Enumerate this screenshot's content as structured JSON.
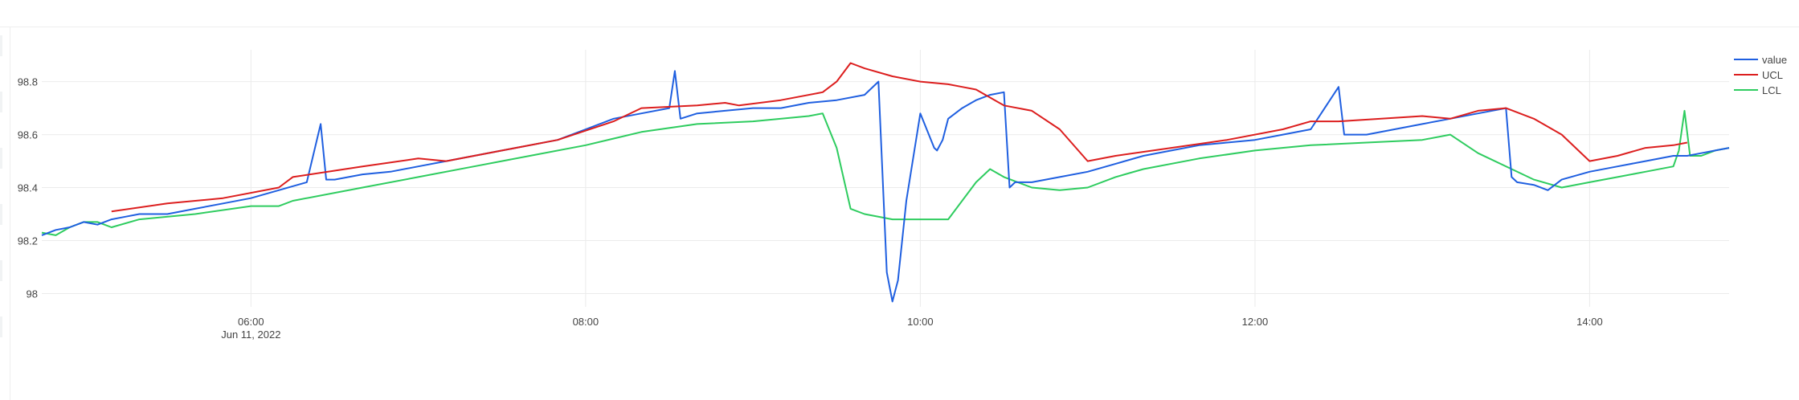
{
  "chart_data": {
    "type": "line",
    "title": "",
    "xlabel": "",
    "ylabel": "",
    "date_label": "Jun 11, 2022",
    "x_range": [
      "04:45",
      "14:50"
    ],
    "x_ticks": [
      "06:00",
      "08:00",
      "10:00",
      "12:00",
      "14:00"
    ],
    "ylim": [
      97.95,
      98.92
    ],
    "y_ticks": [
      "98",
      "98.2",
      "98.4",
      "98.6",
      "98.8"
    ],
    "grid": true,
    "legend_position": "top-right",
    "series": [
      {
        "name": "value",
        "color": "#1f5fe0",
        "x": [
          "04:45",
          "04:50",
          "04:55",
          "05:00",
          "05:05",
          "05:10",
          "05:15",
          "05:20",
          "05:25",
          "05:30",
          "05:40",
          "05:50",
          "06:00",
          "06:10",
          "06:20",
          "06:25",
          "06:27",
          "06:30",
          "06:40",
          "06:50",
          "07:00",
          "07:10",
          "07:20",
          "07:30",
          "07:40",
          "07:50",
          "08:00",
          "08:10",
          "08:20",
          "08:30",
          "08:32",
          "08:34",
          "08:40",
          "08:50",
          "09:00",
          "09:10",
          "09:20",
          "09:30",
          "09:40",
          "09:45",
          "09:48",
          "09:50",
          "09:52",
          "09:55",
          "10:00",
          "10:05",
          "10:06",
          "10:08",
          "10:10",
          "10:15",
          "10:20",
          "10:25",
          "10:30",
          "10:32",
          "10:34",
          "10:40",
          "10:50",
          "11:00",
          "11:10",
          "11:20",
          "11:30",
          "11:40",
          "11:50",
          "12:00",
          "12:10",
          "12:20",
          "12:30",
          "12:32",
          "12:34",
          "12:40",
          "12:50",
          "13:00",
          "13:10",
          "13:20",
          "13:30",
          "13:32",
          "13:34",
          "13:40",
          "13:45",
          "13:50",
          "14:00",
          "14:10",
          "14:20",
          "14:30",
          "14:35",
          "14:40",
          "14:45",
          "14:50"
        ],
        "values": [
          98.22,
          98.24,
          98.25,
          98.27,
          98.26,
          98.28,
          98.29,
          98.3,
          98.3,
          98.3,
          98.32,
          98.34,
          98.36,
          98.39,
          98.42,
          98.64,
          98.43,
          98.43,
          98.45,
          98.46,
          98.48,
          98.5,
          98.52,
          98.54,
          98.56,
          98.58,
          98.62,
          98.66,
          98.68,
          98.7,
          98.84,
          98.66,
          98.68,
          98.69,
          98.7,
          98.7,
          98.72,
          98.73,
          98.75,
          98.8,
          98.08,
          97.97,
          98.05,
          98.35,
          98.68,
          98.55,
          98.54,
          98.58,
          98.66,
          98.7,
          98.73,
          98.75,
          98.76,
          98.4,
          98.42,
          98.42,
          98.44,
          98.46,
          98.49,
          98.52,
          98.54,
          98.56,
          98.57,
          98.58,
          98.6,
          98.62,
          98.78,
          98.6,
          98.6,
          98.6,
          98.62,
          98.64,
          98.66,
          98.68,
          98.7,
          98.44,
          98.42,
          98.41,
          98.39,
          98.43,
          98.46,
          98.48,
          98.5,
          98.52,
          98.52,
          98.53,
          98.54,
          98.55
        ]
      },
      {
        "name": "UCL",
        "color": "#dc1e1e",
        "x": [
          "05:10",
          "05:30",
          "05:50",
          "06:10",
          "06:15",
          "06:40",
          "07:00",
          "07:10",
          "07:30",
          "07:50",
          "08:10",
          "08:20",
          "08:40",
          "08:50",
          "08:55",
          "09:10",
          "09:25",
          "09:30",
          "09:35",
          "09:40",
          "09:50",
          "10:00",
          "10:10",
          "10:15",
          "10:20",
          "10:30",
          "10:40",
          "10:50",
          "11:00",
          "11:10",
          "11:30",
          "11:50",
          "12:10",
          "12:20",
          "12:30",
          "13:00",
          "13:10",
          "13:20",
          "13:30",
          "13:40",
          "13:50",
          "14:00",
          "14:10",
          "14:20",
          "14:30",
          "14:35"
        ],
        "values": [
          98.31,
          98.34,
          98.36,
          98.4,
          98.44,
          98.48,
          98.51,
          98.5,
          98.54,
          98.58,
          98.65,
          98.7,
          98.71,
          98.72,
          98.71,
          98.73,
          98.76,
          98.8,
          98.87,
          98.85,
          98.82,
          98.8,
          98.79,
          98.78,
          98.77,
          98.71,
          98.69,
          98.62,
          98.5,
          98.52,
          98.55,
          98.58,
          98.62,
          98.65,
          98.65,
          98.67,
          98.66,
          98.69,
          98.7,
          98.66,
          98.6,
          98.5,
          98.52,
          98.55,
          98.56,
          98.57
        ]
      },
      {
        "name": "LCL",
        "color": "#2ecc5f",
        "x": [
          "04:45",
          "04:50",
          "04:55",
          "05:00",
          "05:05",
          "05:10",
          "05:20",
          "05:40",
          "06:00",
          "06:10",
          "06:15",
          "06:40",
          "07:00",
          "07:20",
          "07:40",
          "08:00",
          "08:20",
          "08:40",
          "09:00",
          "09:20",
          "09:25",
          "09:30",
          "09:35",
          "09:40",
          "09:50",
          "10:00",
          "10:10",
          "10:20",
          "10:25",
          "10:30",
          "10:40",
          "10:50",
          "11:00",
          "11:10",
          "11:20",
          "11:40",
          "12:00",
          "12:20",
          "12:40",
          "13:00",
          "13:10",
          "13:20",
          "13:40",
          "13:50",
          "14:00",
          "14:10",
          "14:20",
          "14:30",
          "14:32",
          "14:34",
          "14:36",
          "14:40",
          "14:45",
          "14:50"
        ],
        "values": [
          98.23,
          98.22,
          98.25,
          98.27,
          98.27,
          98.25,
          98.28,
          98.3,
          98.33,
          98.33,
          98.35,
          98.4,
          98.44,
          98.48,
          98.52,
          98.56,
          98.61,
          98.64,
          98.65,
          98.67,
          98.68,
          98.55,
          98.32,
          98.3,
          98.28,
          98.28,
          98.28,
          98.42,
          98.47,
          98.44,
          98.4,
          98.39,
          98.4,
          98.44,
          98.47,
          98.51,
          98.54,
          98.56,
          98.57,
          98.58,
          98.6,
          98.53,
          98.43,
          98.4,
          98.42,
          98.44,
          98.46,
          98.48,
          98.54,
          98.69,
          98.52,
          98.52,
          98.54,
          98.55
        ]
      }
    ]
  }
}
